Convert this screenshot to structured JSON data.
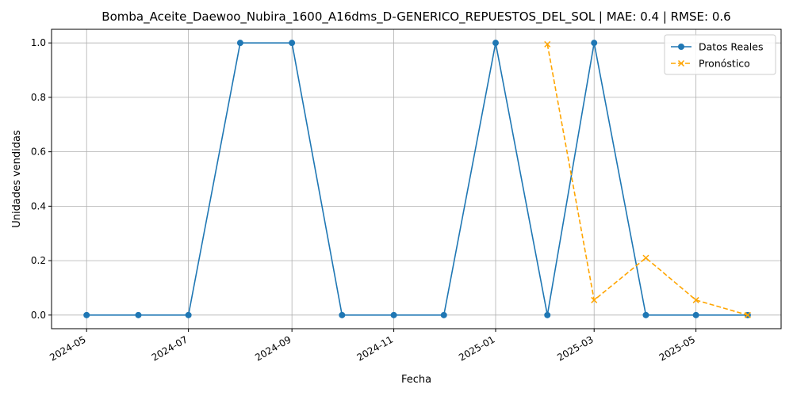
{
  "chart_data": {
    "type": "line",
    "title": "Bomba_Aceite_Daewoo_Nubira_1600_A16dms_D-GENERICO_REPUESTOS_DEL_SOL | MAE: 0.4 | RMSE: 0.6",
    "xlabel": "Fecha",
    "ylabel": "Unidades vendidas",
    "ylim": [
      -0.05,
      1.05
    ],
    "xlim": [
      "2024-04-10",
      "2025-06-21"
    ],
    "grid": true,
    "legend_position": "top-right",
    "x_ticks": [
      "2024-05",
      "2024-07",
      "2024-09",
      "2024-11",
      "2025-01",
      "2025-03",
      "2025-05"
    ],
    "y_ticks": [
      "0.0",
      "0.2",
      "0.4",
      "0.6",
      "0.8",
      "1.0"
    ],
    "series": [
      {
        "name": "Datos Reales",
        "color": "#1f77b4",
        "style": "solid",
        "marker": "circle",
        "x": [
          "2024-05-01",
          "2024-06-01",
          "2024-07-01",
          "2024-08-01",
          "2024-09-01",
          "2024-10-01",
          "2024-11-01",
          "2024-12-01",
          "2025-01-01",
          "2025-02-01",
          "2025-03-01",
          "2025-04-01",
          "2025-05-01",
          "2025-06-01"
        ],
        "values": [
          0,
          0,
          0,
          1,
          1,
          0,
          0,
          0,
          1,
          0,
          1,
          0,
          0,
          0
        ]
      },
      {
        "name": "Pronóstico",
        "color": "#ffa500",
        "style": "dashed",
        "marker": "x",
        "x": [
          "2025-02-01",
          "2025-03-01",
          "2025-04-01",
          "2025-05-01",
          "2025-06-01"
        ],
        "values": [
          0.995,
          0.055,
          0.21,
          0.055,
          0.0
        ]
      }
    ]
  }
}
